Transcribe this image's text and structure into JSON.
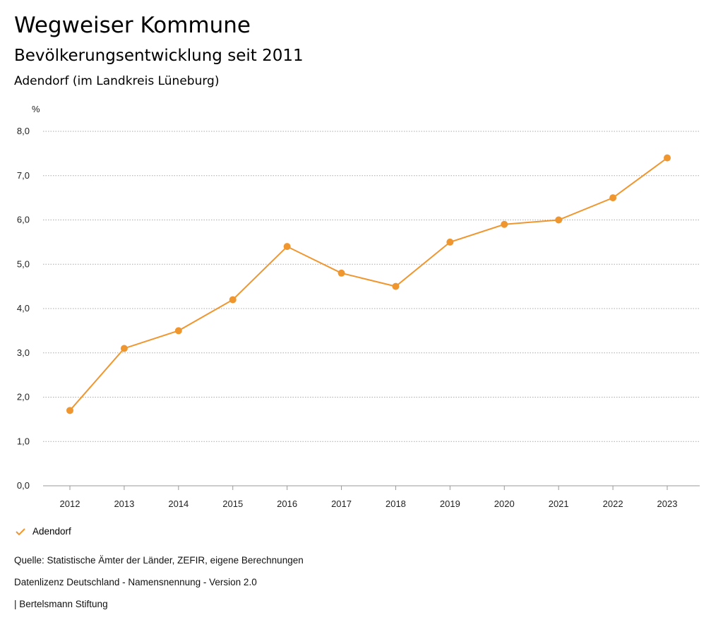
{
  "header": {
    "title": "Wegweiser Kommune",
    "subtitle": "Bevölkerungsentwicklung seit 2011",
    "region": "Adendorf (im Landkreis Lüneburg)"
  },
  "chart_data": {
    "type": "line",
    "title": "Bevölkerungsentwicklung seit 2011",
    "ylabel": "%",
    "xlabel": "",
    "ylim": [
      0,
      8
    ],
    "yticks": [
      "0,0",
      "1,0",
      "2,0",
      "3,0",
      "4,0",
      "5,0",
      "6,0",
      "7,0",
      "8,0"
    ],
    "categories": [
      "2012",
      "2013",
      "2014",
      "2015",
      "2016",
      "2017",
      "2018",
      "2019",
      "2020",
      "2021",
      "2022",
      "2023"
    ],
    "series": [
      {
        "name": "Adendorf",
        "color": "#f0962f",
        "values": [
          1.7,
          3.1,
          3.5,
          4.2,
          5.4,
          4.8,
          4.5,
          5.5,
          5.9,
          6.0,
          6.5,
          7.4
        ]
      }
    ],
    "grid": true,
    "legend": "bottom-left"
  },
  "footer": {
    "source": "Quelle: Statistische Ämter der Länder, ZEFIR, eigene Berechnungen",
    "license": "Datenlizenz Deutschland - Namensnennung - Version 2.0",
    "credit": "| Bertelsmann Stiftung"
  }
}
